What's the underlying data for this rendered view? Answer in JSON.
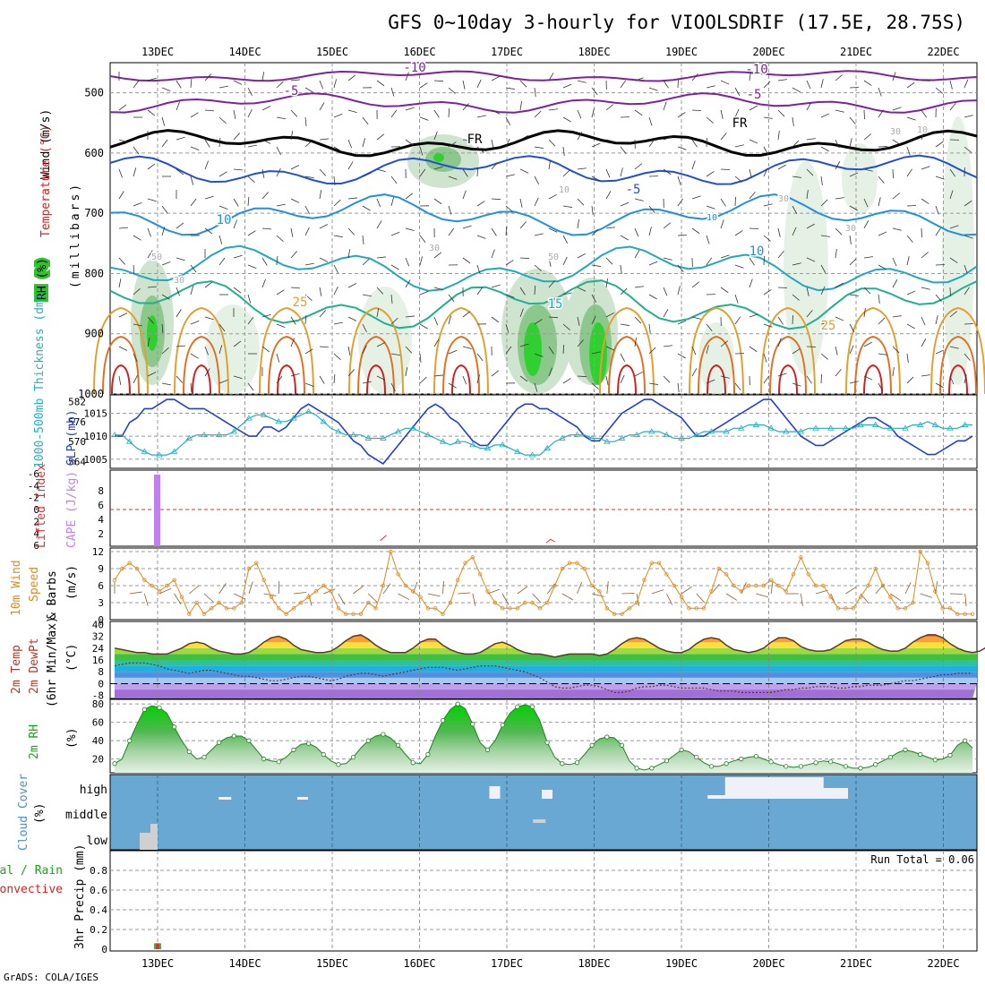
{
  "chart_data": {
    "type": "meteogram",
    "title": "GFS 0~10day 3-hourly for VIOOLSDRIF (17.5E, 28.75S)",
    "credit": "GrADS: COLA/IGES",
    "dates": [
      "13DEC",
      "14DEC",
      "15DEC",
      "16DEC",
      "17DEC",
      "18DEC",
      "19DEC",
      "20DEC",
      "21DEC",
      "22DEC"
    ],
    "panels": [
      {
        "id": "upper_air",
        "type": "contour",
        "labels": [
          "Wind (m/s)",
          "Temperature (°C)",
          "RH (%)",
          "(millibars)"
        ],
        "yticks": [
          "500",
          "600",
          "700",
          "800",
          "900",
          "1000"
        ],
        "ylim": [
          450,
          1000
        ],
        "contour_labels": [
          "-10",
          "-5",
          "FR",
          "-5",
          "10",
          "10",
          "15",
          "25",
          "25",
          "-10",
          "-5",
          "FR",
          "30",
          "30",
          "50",
          "10",
          "50",
          "30",
          "10",
          "30",
          "30",
          "10"
        ],
        "temperature_levels_c": [
          -10,
          -5,
          0,
          5,
          10,
          15,
          20,
          25,
          30
        ]
      },
      {
        "id": "slp_thickness",
        "type": "line",
        "labels": [
          "1000-500mb Thickness (dm)",
          "SLP (mb)"
        ],
        "yticks_left": [
          "582",
          "576",
          "570",
          "564"
        ],
        "yticks_right": [
          "1015",
          "1010",
          "1005"
        ],
        "series": [
          {
            "name": "SLP (mb)",
            "color": "#2040d0",
            "values": [
              1010,
              1010,
              1013,
              1014,
              1016,
              1016,
              1017,
              1018,
              1018,
              1017,
              1016,
              1016,
              1016,
              1015,
              1014,
              1013,
              1012,
              1011,
              1010,
              1010,
              1012,
              1012,
              1011,
              1012,
              1014,
              1016,
              1017,
              1016,
              1015,
              1014,
              1013,
              1011,
              1009,
              1008,
              1006,
              1005,
              1004,
              1006,
              1008,
              1010,
              1012,
              1014,
              1016,
              1017,
              1016,
              1014,
              1013,
              1011,
              1009,
              1008,
              1008,
              1010,
              1012,
              1014,
              1016,
              1017,
              1017,
              1016,
              1016,
              1015,
              1014,
              1013,
              1012,
              1010,
              1009,
              1009,
              1011,
              1013,
              1015,
              1016,
              1017,
              1018,
              1018,
              1017,
              1016,
              1015,
              1014,
              1012,
              1010,
              1010,
              1011,
              1012,
              1013,
              1014,
              1015,
              1016,
              1017,
              1018,
              1018,
              1016,
              1014,
              1012,
              1010,
              1009,
              1008,
              1008,
              1009,
              1010,
              1011,
              1012,
              1013,
              1014,
              1014,
              1013,
              1012,
              1010,
              1009,
              1008,
              1007,
              1006,
              1006,
              1007,
              1008,
              1009,
              1009,
              1010
            ]
          },
          {
            "name": "1000-500mb Thickness (dm)",
            "color": "#20b0c0",
            "values": [
              572,
              572,
              570,
              568,
              567,
              566,
              566,
              566,
              567,
              569,
              571,
              572,
              572,
              572,
              572,
              572,
              573,
              575,
              577,
              578,
              578,
              577,
              576,
              576,
              577,
              578,
              579,
              578,
              576,
              574,
              573,
              572,
              572,
              572,
              571,
              571,
              571,
              572,
              573,
              574,
              574,
              573,
              572,
              571,
              570,
              569,
              570,
              570,
              569,
              568,
              568,
              569,
              569,
              568,
              567,
              566,
              566,
              566,
              568,
              570,
              571,
              572,
              572,
              572,
              571,
              571,
              570,
              570,
              571,
              572,
              572,
              573,
              573,
              573,
              572,
              571,
              571,
              571,
              572,
              573,
              573,
              573,
              573,
              574,
              574,
              575,
              575,
              575,
              574,
              573,
              573,
              573,
              573,
              574,
              574,
              574,
              574,
              574,
              574,
              574,
              575,
              575,
              575,
              574,
              574,
              574,
              574,
              575,
              575,
              576,
              575,
              574,
              574,
              574,
              575,
              575
            ]
          }
        ]
      },
      {
        "id": "cape_li",
        "type": "bar",
        "labels": [
          "Lifted Index",
          "CAPE (J/kg)"
        ],
        "yticks_left": [
          "-6",
          "-4",
          "-2",
          "0",
          "2",
          "4",
          "6"
        ],
        "yticks_right": [
          "8",
          "6",
          "4",
          "2"
        ],
        "cape_bars": [
          {
            "date_pos": 0.0,
            "value": 10
          }
        ],
        "lifted_index_points": [
          {
            "date_pos": 2.55,
            "value": 5.2
          },
          {
            "date_pos": 2.62,
            "value": 4.3
          },
          {
            "date_pos": 4.45,
            "value": 5.6
          },
          {
            "date_pos": 4.5,
            "value": 5.0
          },
          {
            "date_pos": 4.55,
            "value": 5.4
          }
        ]
      },
      {
        "id": "wind10m",
        "type": "line",
        "labels": [
          "10m Wind",
          "Speed",
          "& Barbs",
          "(m/s)"
        ],
        "yticks": [
          "0",
          "3",
          "6",
          "9",
          "12"
        ],
        "ylim": [
          0,
          12
        ],
        "series": [
          {
            "name": "10m Wind Speed",
            "color": "#e08a1a",
            "values": [
              7,
              9,
              10,
              9,
              7,
              6,
              5,
              6,
              7,
              4,
              1,
              3,
              1,
              2,
              3,
              2,
              2,
              3,
              9,
              10,
              7,
              4,
              2,
              1,
              2,
              3,
              4,
              5,
              6,
              5,
              2,
              1,
              1,
              1,
              3,
              2,
              6,
              12,
              8,
              6,
              5,
              4,
              2,
              2,
              1,
              3,
              7,
              10,
              11,
              8,
              5,
              3,
              2,
              2,
              2,
              3,
              3,
              2,
              3,
              6,
              9,
              10,
              10,
              9,
              6,
              5,
              2,
              1,
              1,
              2,
              3,
              7,
              10,
              10,
              8,
              6,
              4,
              2,
              2,
              2,
              5,
              9,
              8,
              6,
              5,
              6,
              6,
              6,
              7,
              6,
              5,
              8,
              11,
              8,
              6,
              6,
              4,
              2,
              2,
              2,
              4,
              6,
              9,
              6,
              4,
              2,
              2,
              3,
              12,
              10,
              5,
              2,
              2,
              1,
              1,
              1
            ]
          }
        ]
      },
      {
        "id": "temp2m",
        "type": "area",
        "labels": [
          "2m Temp",
          "2m DewPt",
          "(6hr Min/Max)",
          "(°C)"
        ],
        "yticks": [
          "40",
          "32",
          "24",
          "16",
          "8",
          "0",
          "-8"
        ],
        "ylim": [
          -8,
          40
        ],
        "series": [
          {
            "name": "2m Temp",
            "values": [
              24,
              23,
              22,
              21,
              21,
              20,
              20,
              20,
              22,
              24,
              27,
              28,
              27,
              24,
              22,
              21,
              20,
              20,
              21,
              24,
              28,
              31,
              32,
              30,
              26,
              23,
              22,
              21,
              21,
              22,
              25,
              29,
              32,
              33,
              30,
              26,
              23,
              21,
              21,
              21,
              24,
              28,
              30,
              30,
              26,
              23,
              21,
              20,
              20,
              21,
              24,
              27,
              28,
              26,
              23,
              21,
              20,
              20,
              19,
              18,
              19,
              20,
              20,
              20,
              20,
              19,
              20,
              23,
              27,
              30,
              31,
              30,
              27,
              24,
              22,
              21,
              21,
              23,
              27,
              30,
              31,
              30,
              26,
              23,
              22,
              21,
              22,
              24,
              28,
              31,
              31,
              29,
              25,
              23,
              22,
              22,
              23,
              26,
              29,
              30,
              30,
              28,
              25,
              23,
              22,
              22,
              24,
              28,
              31,
              33,
              33,
              31,
              27,
              24,
              22,
              21,
              22,
              25
            ]
          },
          {
            "name": "2m DewPt",
            "values": [
              12,
              13,
              14,
              14,
              14,
              13,
              12,
              10,
              9,
              8,
              7,
              8,
              9,
              9,
              8,
              7,
              6,
              5,
              5,
              4,
              3,
              2,
              2,
              3,
              4,
              5,
              5,
              4,
              3,
              2,
              3,
              5,
              6,
              7,
              7,
              6,
              5,
              6,
              7,
              8,
              9,
              10,
              11,
              11,
              11,
              10,
              9,
              10,
              11,
              12,
              12,
              12,
              11,
              10,
              9,
              8,
              6,
              4,
              1,
              -2,
              -3,
              -3,
              -2,
              -1,
              -1,
              -2,
              -4,
              -6,
              -6,
              -5,
              -3,
              -2,
              -2,
              -1,
              -1,
              -2,
              -3,
              -3,
              -3,
              -3,
              -4,
              -5,
              -5,
              -5,
              -6,
              -6,
              -6,
              -6,
              -6,
              -5,
              -4,
              -4,
              -3,
              -3,
              -2,
              -2,
              -2,
              -3,
              -3,
              -2,
              -2,
              -1,
              -1,
              -1,
              0,
              1,
              2,
              2,
              3,
              4,
              5,
              6,
              6,
              7,
              7,
              7
            ]
          }
        ]
      },
      {
        "id": "rh2m",
        "type": "area",
        "labels": [
          "2m RH",
          "(%)"
        ],
        "yticks": [
          "20",
          "40",
          "60",
          "80"
        ],
        "ylim": [
          5,
          85
        ],
        "series": [
          {
            "name": "2m RH",
            "values": [
              15,
              20,
              40,
              58,
              74,
              78,
              76,
              70,
              55,
              40,
              28,
              20,
              22,
              30,
              38,
              43,
              45,
              45,
              40,
              30,
              20,
              18,
              17,
              22,
              30,
              36,
              37,
              33,
              25,
              18,
              14,
              15,
              22,
              32,
              40,
              45,
              47,
              43,
              35,
              25,
              16,
              15,
              25,
              45,
              62,
              74,
              80,
              75,
              58,
              38,
              30,
              40,
              57,
              70,
              77,
              79,
              77,
              62,
              38,
              22,
              15,
              14,
              16,
              25,
              35,
              42,
              44,
              43,
              35,
              18,
              10,
              8,
              10,
              14,
              18,
              24,
              30,
              28,
              22,
              16,
              12,
              12,
              15,
              18,
              20,
              22,
              23,
              20,
              17,
              14,
              12,
              11,
              12,
              14,
              16,
              18,
              17,
              15,
              12,
              10,
              10,
              11,
              14,
              18,
              22,
              27,
              30,
              28,
              25,
              22,
              19,
              20,
              24,
              35,
              40,
              32
            ]
          }
        ]
      },
      {
        "id": "cloud",
        "type": "heatmap",
        "labels": [
          "Cloud Cover",
          "(%)"
        ],
        "yticks": [
          "high",
          "middle",
          "low"
        ]
      },
      {
        "id": "precip",
        "type": "bar",
        "labels": [
          "Total / Rain",
          "Convective",
          "3hr Precip (mm)"
        ],
        "yticks": [
          "0",
          "0.2",
          "0.4",
          "0.6",
          "0.8"
        ],
        "ylim": [
          0,
          1.0
        ],
        "run_total": "Run Total = 0.06",
        "bars": [
          {
            "date_pos": 0.0,
            "value": 0.06
          }
        ]
      }
    ]
  }
}
